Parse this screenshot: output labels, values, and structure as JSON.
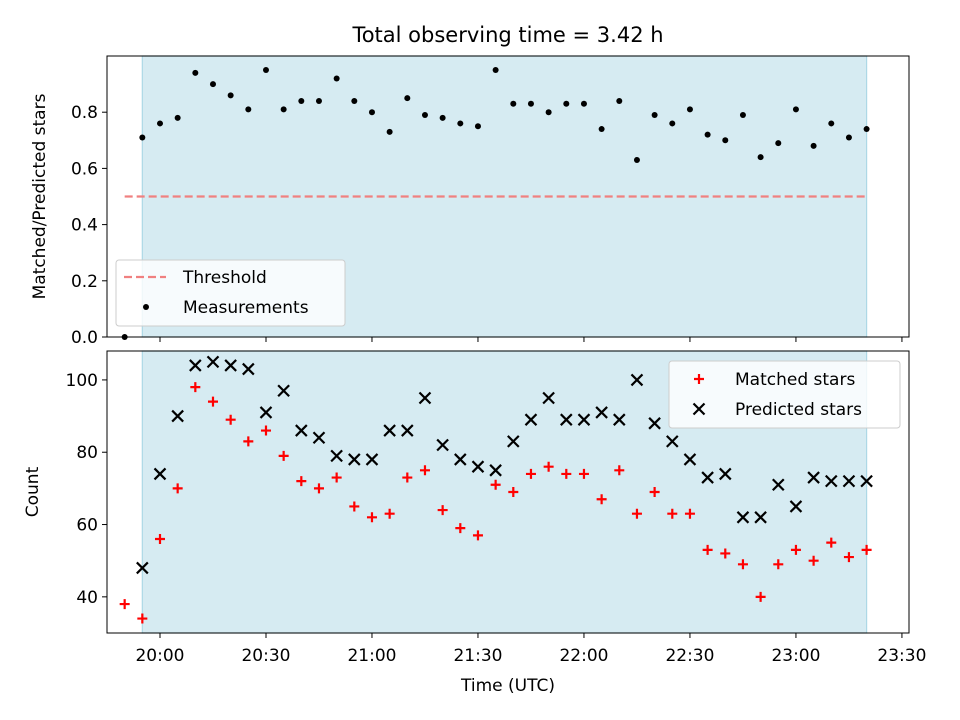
{
  "colors": {
    "span": "#add8e6",
    "threshold": "#f08080",
    "measurement": "#000000",
    "matched": "#ff0000",
    "predicted": "#000000"
  },
  "chart_data": [
    {
      "type": "scatter",
      "title": "Total observing time = 3.42 h",
      "xlabel": "",
      "ylabel": "Matched/Predicted stars",
      "ylim": [
        0,
        1.0
      ],
      "yticks": [
        "0.0",
        "0.2",
        "0.4",
        "0.6",
        "0.8"
      ],
      "ytick_values": [
        0,
        0.2,
        0.4,
        0.6,
        0.8
      ],
      "observing_span": [
        "19:55",
        "23:20"
      ],
      "legend_position": "lower-left",
      "threshold": {
        "name": "Threshold",
        "value": 0.5,
        "x_range": [
          "19:50",
          "23:20"
        ]
      },
      "series": [
        {
          "name": "Measurements",
          "marker": "dot",
          "x": [
            "19:50",
            "19:55",
            "20:00",
            "20:05",
            "20:10",
            "20:15",
            "20:20",
            "20:25",
            "20:30",
            "20:35",
            "20:40",
            "20:45",
            "20:50",
            "20:55",
            "21:00",
            "21:05",
            "21:10",
            "21:15",
            "21:20",
            "21:25",
            "21:30",
            "21:35",
            "21:40",
            "21:45",
            "21:50",
            "21:55",
            "22:00",
            "22:05",
            "22:10",
            "22:15",
            "22:20",
            "22:25",
            "22:30",
            "22:35",
            "22:40",
            "22:45",
            "22:50",
            "22:55",
            "23:00",
            "23:05",
            "23:10",
            "23:15",
            "23:20"
          ],
          "values": [
            0.0,
            0.71,
            0.76,
            0.78,
            0.94,
            0.9,
            0.86,
            0.81,
            0.95,
            0.81,
            0.84,
            0.84,
            0.92,
            0.84,
            0.8,
            0.73,
            0.85,
            0.79,
            0.78,
            0.76,
            0.75,
            0.95,
            0.83,
            0.83,
            0.8,
            0.83,
            0.83,
            0.74,
            0.84,
            0.63,
            0.79,
            0.76,
            0.81,
            0.72,
            0.7,
            0.79,
            0.64,
            0.69,
            0.81,
            0.68,
            0.76,
            0.71,
            0.74
          ]
        }
      ]
    },
    {
      "type": "scatter",
      "title": "",
      "xlabel": "Time (UTC)",
      "ylabel": "Count",
      "ylim": [
        30,
        108
      ],
      "yticks": [
        "40",
        "60",
        "80",
        "100"
      ],
      "ytick_values": [
        40,
        60,
        80,
        100
      ],
      "xlim": [
        "19:45",
        "23:32"
      ],
      "xticks": [
        "20:00",
        "20:30",
        "21:00",
        "21:30",
        "22:00",
        "22:30",
        "23:00",
        "23:30"
      ],
      "observing_span": [
        "19:55",
        "23:20"
      ],
      "legend_position": "upper-right",
      "series": [
        {
          "name": "Matched stars",
          "marker": "plus",
          "x": [
            "19:50",
            "19:55",
            "20:00",
            "20:05",
            "20:10",
            "20:15",
            "20:20",
            "20:25",
            "20:30",
            "20:35",
            "20:40",
            "20:45",
            "20:50",
            "20:55",
            "21:00",
            "21:05",
            "21:10",
            "21:15",
            "21:20",
            "21:25",
            "21:30",
            "21:35",
            "21:40",
            "21:45",
            "21:50",
            "21:55",
            "22:00",
            "22:05",
            "22:10",
            "22:15",
            "22:20",
            "22:25",
            "22:30",
            "22:35",
            "22:40",
            "22:45",
            "22:50",
            "22:55",
            "23:00",
            "23:05",
            "23:10",
            "23:15",
            "23:20"
          ],
          "values": [
            38,
            34,
            56,
            70,
            98,
            94,
            89,
            83,
            86,
            79,
            72,
            70,
            73,
            65,
            62,
            63,
            73,
            75,
            64,
            59,
            57,
            71,
            69,
            74,
            76,
            74,
            74,
            67,
            75,
            63,
            69,
            63,
            63,
            53,
            52,
            49,
            40,
            49,
            53,
            50,
            55,
            51,
            53
          ]
        },
        {
          "name": "Predicted stars",
          "marker": "x",
          "x": [
            "19:55",
            "20:00",
            "20:05",
            "20:10",
            "20:15",
            "20:20",
            "20:25",
            "20:30",
            "20:35",
            "20:40",
            "20:45",
            "20:50",
            "20:55",
            "21:00",
            "21:05",
            "21:10",
            "21:15",
            "21:20",
            "21:25",
            "21:30",
            "21:35",
            "21:40",
            "21:45",
            "21:50",
            "21:55",
            "22:00",
            "22:05",
            "22:10",
            "22:15",
            "22:20",
            "22:25",
            "22:30",
            "22:35",
            "22:40",
            "22:45",
            "22:50",
            "22:55",
            "23:00",
            "23:05",
            "23:10",
            "23:15",
            "23:20"
          ],
          "values": [
            48,
            74,
            90,
            104,
            105,
            104,
            103,
            91,
            97,
            86,
            84,
            79,
            78,
            78,
            86,
            86,
            95,
            82,
            78,
            76,
            75,
            83,
            89,
            95,
            89,
            89,
            91,
            89,
            100,
            88,
            83,
            78,
            73,
            74,
            62,
            62,
            71,
            65,
            73,
            72,
            72,
            72
          ]
        }
      ]
    }
  ]
}
